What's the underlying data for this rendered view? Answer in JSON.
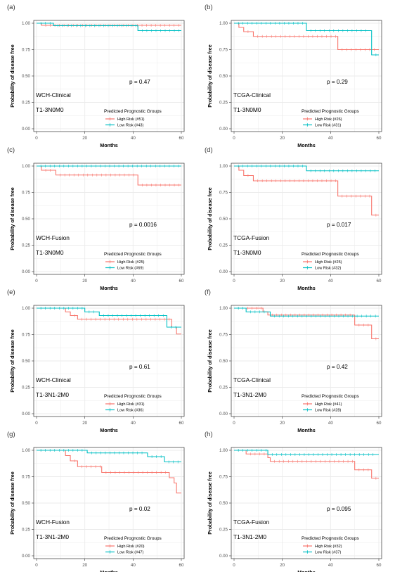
{
  "colors": {
    "high": "#F8766D",
    "low": "#00BFC4",
    "grid": "#EBEBEB",
    "frame": "#333333",
    "text": "#333333"
  },
  "legend_title": "Predicted Prognostic Groups",
  "chart_data": [
    {
      "type": "line",
      "panel": "(a)",
      "cohort": "WCH-Clinical",
      "stage": "T1-3N0M0",
      "pvalue": "p = 0.47",
      "xlabel": "Months",
      "ylabel": "Probability of disease free",
      "xlim": [
        0,
        60
      ],
      "ylim": [
        0,
        1
      ],
      "xticks": [
        "0",
        "20",
        "40",
        "60"
      ],
      "yticks": [
        "0.00",
        "0.25",
        "0.50",
        "0.75",
        "1.00"
      ],
      "series": [
        {
          "name": "High Risk (#51)",
          "color": "high",
          "x": [
            0,
            2,
            60
          ],
          "y": [
            1.0,
            0.98,
            0.98
          ]
        },
        {
          "name": "Low Risk (#43)",
          "color": "low",
          "x": [
            0,
            7,
            42,
            60
          ],
          "y": [
            1.0,
            0.977,
            0.93,
            0.93
          ]
        }
      ]
    },
    {
      "type": "line",
      "panel": "(b)",
      "cohort": "TCGA-Clinical",
      "stage": "T1-3N0M0",
      "pvalue": "p = 0.29",
      "xlabel": "Months",
      "ylabel": "Probability of disease free",
      "xlim": [
        0,
        60
      ],
      "ylim": [
        0,
        1
      ],
      "xticks": [
        "0",
        "20",
        "40",
        "60"
      ],
      "yticks": [
        "0.00",
        "0.25",
        "0.50",
        "0.75",
        "1.00"
      ],
      "series": [
        {
          "name": "High Risk (#26)",
          "color": "high",
          "x": [
            0,
            2,
            4,
            8,
            43,
            60
          ],
          "y": [
            1.0,
            0.96,
            0.92,
            0.875,
            0.75,
            0.75
          ]
        },
        {
          "name": "Low Risk (#31)",
          "color": "low",
          "x": [
            0,
            30,
            57,
            60
          ],
          "y": [
            1.0,
            0.93,
            0.7,
            0.7
          ]
        }
      ]
    },
    {
      "type": "line",
      "panel": "(c)",
      "cohort": "WCH-Fusion",
      "stage": "T1-3N0M0",
      "pvalue": "p = 0.0016",
      "xlabel": "Months",
      "ylabel": "Probability of disease free",
      "xlim": [
        0,
        60
      ],
      "ylim": [
        0,
        1
      ],
      "xticks": [
        "0",
        "20",
        "40",
        "60"
      ],
      "yticks": [
        "0.00",
        "0.25",
        "0.50",
        "0.75",
        "1.00"
      ],
      "series": [
        {
          "name": "High Risk (#25)",
          "color": "high",
          "x": [
            0,
            2,
            8,
            42,
            60
          ],
          "y": [
            1.0,
            0.96,
            0.915,
            0.82,
            0.82
          ]
        },
        {
          "name": "Low Risk (#69)",
          "color": "low",
          "x": [
            0,
            60
          ],
          "y": [
            1.0,
            1.0
          ]
        }
      ]
    },
    {
      "type": "line",
      "panel": "(d)",
      "cohort": "TCGA-Fusion",
      "stage": "T1-3N0M0",
      "pvalue": "p = 0.017",
      "xlabel": "Months",
      "ylabel": "Probability of disease free",
      "xlim": [
        0,
        60
      ],
      "ylim": [
        0,
        1
      ],
      "xticks": [
        "0",
        "20",
        "40",
        "60"
      ],
      "yticks": [
        "0.00",
        "0.25",
        "0.50",
        "0.75",
        "1.00"
      ],
      "series": [
        {
          "name": "High Risk (#25)",
          "color": "high",
          "x": [
            0,
            2,
            4,
            8,
            43,
            57,
            60
          ],
          "y": [
            1.0,
            0.96,
            0.91,
            0.86,
            0.715,
            0.535,
            0.535
          ]
        },
        {
          "name": "Low Risk (#32)",
          "color": "low",
          "x": [
            0,
            30,
            60
          ],
          "y": [
            1.0,
            0.955,
            0.955
          ]
        }
      ]
    },
    {
      "type": "line",
      "panel": "(e)",
      "cohort": "WCH-Clinical",
      "stage": "T1-3N1-2M0",
      "pvalue": "p = 0.61",
      "xlabel": "Months",
      "ylabel": "Probability of disease free",
      "xlim": [
        0,
        60
      ],
      "ylim": [
        0,
        1
      ],
      "xticks": [
        "0",
        "20",
        "40",
        "60"
      ],
      "yticks": [
        "0.00",
        "0.25",
        "0.50",
        "0.75",
        "1.00"
      ],
      "series": [
        {
          "name": "High Risk (#31)",
          "color": "high",
          "x": [
            0,
            12,
            14,
            17,
            56,
            58,
            60
          ],
          "y": [
            1.0,
            0.965,
            0.93,
            0.895,
            0.82,
            0.755,
            0.755
          ]
        },
        {
          "name": "Low Risk (#36)",
          "color": "low",
          "x": [
            0,
            20,
            26,
            54,
            60
          ],
          "y": [
            1.0,
            0.965,
            0.93,
            0.82,
            0.82
          ]
        }
      ]
    },
    {
      "type": "line",
      "panel": "(f)",
      "cohort": "TCGA-Clinical",
      "stage": "T1-3N1-2M0",
      "pvalue": "p = 0.42",
      "xlabel": "Months",
      "ylabel": "Probability of disease free",
      "xlim": [
        0,
        60
      ],
      "ylim": [
        0,
        1
      ],
      "xticks": [
        "0",
        "20",
        "40",
        "60"
      ],
      "yticks": [
        "0.00",
        "0.25",
        "0.50",
        "0.75",
        "1.00"
      ],
      "series": [
        {
          "name": "High Risk (#41)",
          "color": "high",
          "x": [
            0,
            12,
            14,
            50,
            57,
            60
          ],
          "y": [
            1.0,
            0.965,
            0.935,
            0.84,
            0.71,
            0.71
          ]
        },
        {
          "name": "Low Risk (#28)",
          "color": "low",
          "x": [
            0,
            5,
            15,
            60
          ],
          "y": [
            1.0,
            0.965,
            0.925,
            0.925
          ]
        }
      ]
    },
    {
      "type": "line",
      "panel": "(g)",
      "cohort": "WCH-Fusion",
      "stage": "T1-3N1-2M0",
      "pvalue": "p = 0.02",
      "xlabel": "Months",
      "ylabel": "Probability of disease free",
      "xlim": [
        0,
        60
      ],
      "ylim": [
        0,
        1
      ],
      "xticks": [
        "0",
        "20",
        "40",
        "60"
      ],
      "yticks": [
        "0.00",
        "0.25",
        "0.50",
        "0.75",
        "1.00"
      ],
      "series": [
        {
          "name": "High Risk (#20)",
          "color": "high",
          "x": [
            0,
            12,
            14,
            17,
            27,
            55,
            57,
            58,
            60
          ],
          "y": [
            1.0,
            0.95,
            0.9,
            0.845,
            0.79,
            0.74,
            0.69,
            0.595,
            0.595
          ]
        },
        {
          "name": "Low Risk (#47)",
          "color": "low",
          "x": [
            0,
            21,
            46,
            53,
            60
          ],
          "y": [
            1.0,
            0.975,
            0.94,
            0.89,
            0.89
          ]
        }
      ]
    },
    {
      "type": "line",
      "panel": "(h)",
      "cohort": "TCGA-Fusion",
      "stage": "T1-3N1-2M0",
      "pvalue": "p = 0.095",
      "xlabel": "Months",
      "ylabel": "Probability of disease free",
      "xlim": [
        0,
        60
      ],
      "ylim": [
        0,
        1
      ],
      "xticks": [
        "0",
        "20",
        "40",
        "60"
      ],
      "yticks": [
        "0.00",
        "0.25",
        "0.50",
        "0.75",
        "1.00"
      ],
      "series": [
        {
          "name": "High Risk (#32)",
          "color": "high",
          "x": [
            0,
            5,
            14,
            15,
            50,
            57,
            60
          ],
          "y": [
            1.0,
            0.965,
            0.93,
            0.895,
            0.815,
            0.735,
            0.735
          ]
        },
        {
          "name": "Low Risk (#37)",
          "color": "low",
          "x": [
            0,
            14,
            60
          ],
          "y": [
            1.0,
            0.96,
            0.96
          ]
        }
      ]
    }
  ]
}
